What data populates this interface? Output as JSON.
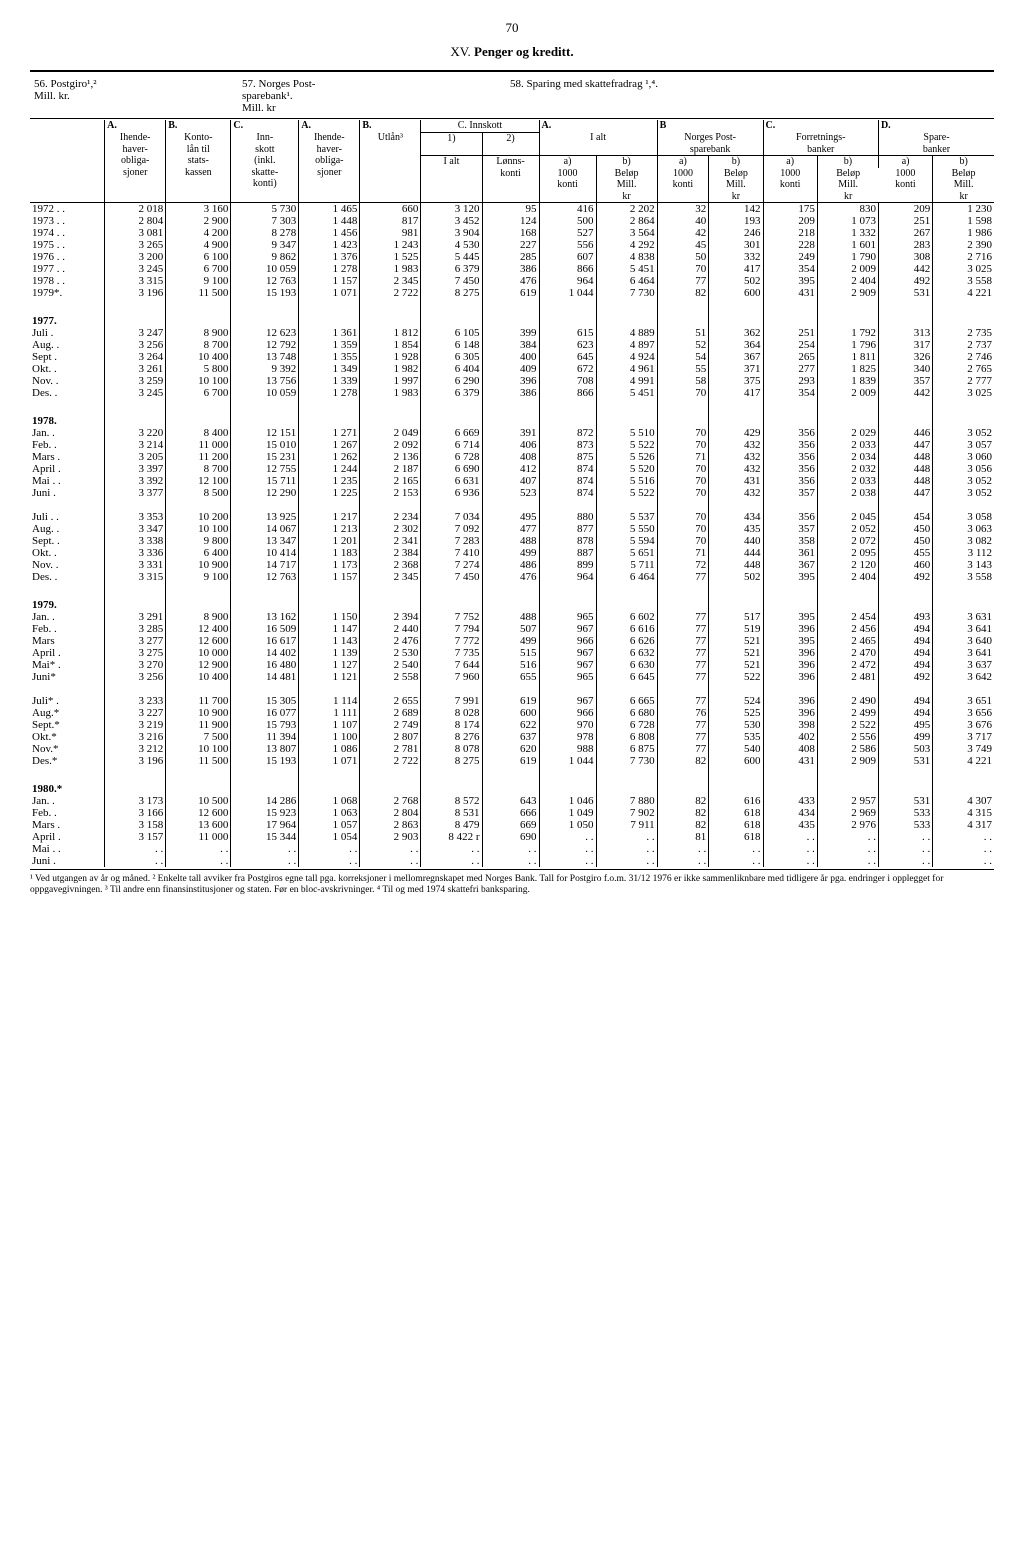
{
  "page_number": "70",
  "section_title_prefix": "XV.",
  "section_title": "Penger og kreditt.",
  "table_titles": {
    "t56": "56. Postgiro¹,²\nMill. kr.",
    "t57": "57. Norges Post-\nsparebank¹.\nMill. kr",
    "t58": "58. Sparing med skattefradrag ¹,⁴."
  },
  "headers": {
    "A1": "A.",
    "B1": "B.",
    "C1": "C.",
    "ihende1": "Ihende-\nhaver-\nobliga-\nsjoner",
    "konto": "Konto-\nlån til\nstats-\nkassen",
    "innskott": "Inn-\nskott\n(inkl.\nskatte-\nkonti)",
    "A2": "A.",
    "B2": "B.",
    "ihende2": "Ihende-\nhaver-\nobliga-\nsjoner",
    "utlan": "Utlån³",
    "cinnskott": "C. Innskott",
    "c1": "1)",
    "c2": "2)",
    "ialt": "I alt",
    "lonnskonti": "Lønns-\nkonti",
    "A3": "A.",
    "B3": "B",
    "C3": "C.",
    "D3": "D.",
    "ialt3": "I alt",
    "norgespost": "Norges Post-\nsparebank",
    "forretnings": "Forretnings-\nbanker",
    "sparebanker": "Spare-\nbanker",
    "a": "a)",
    "b": "b)",
    "konti1000": "1000\nkonti",
    "belop_mill": "Beløp\nMill.\nkr"
  },
  "rows": [
    {
      "label": "1972 . .",
      "v": [
        "2 018",
        "3 160",
        "5 730",
        "1 465",
        "660",
        "3 120",
        "95",
        "416",
        "2 202",
        "32",
        "142",
        "175",
        "830",
        "209",
        "1 230"
      ]
    },
    {
      "label": "1973 . .",
      "v": [
        "2 804",
        "2 900",
        "7 303",
        "1 448",
        "817",
        "3 452",
        "124",
        "500",
        "2 864",
        "40",
        "193",
        "209",
        "1 073",
        "251",
        "1 598"
      ]
    },
    {
      "label": "1974 . .",
      "v": [
        "3 081",
        "4 200",
        "8 278",
        "1 456",
        "981",
        "3 904",
        "168",
        "527",
        "3 564",
        "42",
        "246",
        "218",
        "1 332",
        "267",
        "1 986"
      ]
    },
    {
      "label": "1975 . .",
      "v": [
        "3 265",
        "4 900",
        "9 347",
        "1 423",
        "1 243",
        "4 530",
        "227",
        "556",
        "4 292",
        "45",
        "301",
        "228",
        "1 601",
        "283",
        "2 390"
      ]
    },
    {
      "label": "1976 . .",
      "v": [
        "3 200",
        "6 100",
        "9 862",
        "1 376",
        "1 525",
        "5 445",
        "285",
        "607",
        "4 838",
        "50",
        "332",
        "249",
        "1 790",
        "308",
        "2 716"
      ]
    },
    {
      "label": "1977 . .",
      "v": [
        "3 245",
        "6 700",
        "10 059",
        "1 278",
        "1 983",
        "6 379",
        "386",
        "866",
        "5 451",
        "70",
        "417",
        "354",
        "2 009",
        "442",
        "3 025"
      ]
    },
    {
      "label": "1978 . .",
      "v": [
        "3 315",
        "9 100",
        "12 763",
        "1 157",
        "2 345",
        "7 450",
        "476",
        "964",
        "6 464",
        "77",
        "502",
        "395",
        "2 404",
        "492",
        "3 558"
      ]
    },
    {
      "label": "1979*.",
      "v": [
        "3 196",
        "11 500",
        "15 193",
        "1 071",
        "2 722",
        "8 275",
        "619",
        "1 044",
        "7 730",
        "82",
        "600",
        "431",
        "2 909",
        "531",
        "4 221"
      ]
    }
  ],
  "groups": [
    {
      "title": "1977.",
      "rows": [
        {
          "label": "Juli   .",
          "v": [
            "3 247",
            "8 900",
            "12 623",
            "1 361",
            "1 812",
            "6 105",
            "399",
            "615",
            "4 889",
            "51",
            "362",
            "251",
            "1 792",
            "313",
            "2 735"
          ]
        },
        {
          "label": "Aug.  .",
          "v": [
            "3 256",
            "8 700",
            "12 792",
            "1 359",
            "1 854",
            "6 148",
            "384",
            "623",
            "4 897",
            "52",
            "364",
            "254",
            "1 796",
            "317",
            "2 737"
          ]
        },
        {
          "label": "Sept  .",
          "v": [
            "3 264",
            "10 400",
            "13 748",
            "1 355",
            "1 928",
            "6 305",
            "400",
            "645",
            "4 924",
            "54",
            "367",
            "265",
            "1 811",
            "326",
            "2 746"
          ]
        },
        {
          "label": "Okt.  .",
          "v": [
            "3 261",
            "5 800",
            "9 392",
            "1 349",
            "1 982",
            "6 404",
            "409",
            "672",
            "4 961",
            "55",
            "371",
            "277",
            "1 825",
            "340",
            "2 765"
          ]
        },
        {
          "label": "Nov.  .",
          "v": [
            "3 259",
            "10 100",
            "13 756",
            "1 339",
            "1 997",
            "6 290",
            "396",
            "708",
            "4 991",
            "58",
            "375",
            "293",
            "1 839",
            "357",
            "2 777"
          ]
        },
        {
          "label": "Des.  .",
          "v": [
            "3 245",
            "6 700",
            "10 059",
            "1 278",
            "1 983",
            "6 379",
            "386",
            "866",
            "5 451",
            "70",
            "417",
            "354",
            "2 009",
            "442",
            "3 025"
          ]
        }
      ]
    },
    {
      "title": "1978.",
      "rows": [
        {
          "label": "Jan.   .",
          "v": [
            "3 220",
            "8 400",
            "12 151",
            "1 271",
            "2 049",
            "6 669",
            "391",
            "872",
            "5 510",
            "70",
            "429",
            "356",
            "2 029",
            "446",
            "3 052"
          ]
        },
        {
          "label": "Feb.   .",
          "v": [
            "3 214",
            "11 000",
            "15 010",
            "1 267",
            "2 092",
            "6 714",
            "406",
            "873",
            "5 522",
            "70",
            "432",
            "356",
            "2 033",
            "447",
            "3 057"
          ]
        },
        {
          "label": "Mars  .",
          "v": [
            "3 205",
            "11 200",
            "15 231",
            "1 262",
            "2 136",
            "6 728",
            "408",
            "875",
            "5 526",
            "71",
            "432",
            "356",
            "2 034",
            "448",
            "3 060"
          ]
        },
        {
          "label": "April .",
          "v": [
            "3 397",
            "8 700",
            "12 755",
            "1 244",
            "2 187",
            "6 690",
            "412",
            "874",
            "5 520",
            "70",
            "432",
            "356",
            "2 032",
            "448",
            "3 056"
          ]
        },
        {
          "label": "Mai  . .",
          "v": [
            "3 392",
            "12 100",
            "15 711",
            "1 235",
            "2 165",
            "6 631",
            "407",
            "874",
            "5 516",
            "70",
            "431",
            "356",
            "2 033",
            "448",
            "3 052"
          ]
        },
        {
          "label": "Juni   .",
          "v": [
            "3 377",
            "8 500",
            "12 290",
            "1 225",
            "2 153",
            "6 936",
            "523",
            "874",
            "5 522",
            "70",
            "432",
            "357",
            "2 038",
            "447",
            "3 052"
          ]
        }
      ]
    },
    {
      "title": "",
      "rows": [
        {
          "label": "Juli  . .",
          "v": [
            "3 353",
            "10 200",
            "13 925",
            "1 217",
            "2 234",
            "7 034",
            "495",
            "880",
            "5 537",
            "70",
            "434",
            "356",
            "2 045",
            "454",
            "3 058"
          ]
        },
        {
          "label": "Aug.  .",
          "v": [
            "3 347",
            "10 100",
            "14 067",
            "1 213",
            "2 302",
            "7 092",
            "477",
            "877",
            "5 550",
            "70",
            "435",
            "357",
            "2 052",
            "450",
            "3 063"
          ]
        },
        {
          "label": "Sept.  .",
          "v": [
            "3 338",
            "9 800",
            "13 347",
            "1 201",
            "2 341",
            "7 283",
            "488",
            "878",
            "5 594",
            "70",
            "440",
            "358",
            "2 072",
            "450",
            "3 082"
          ]
        },
        {
          "label": "Okt.   .",
          "v": [
            "3 336",
            "6 400",
            "10 414",
            "1 183",
            "2 384",
            "7 410",
            "499",
            "887",
            "5 651",
            "71",
            "444",
            "361",
            "2 095",
            "455",
            "3 112"
          ]
        },
        {
          "label": "Nov.  .",
          "v": [
            "3 331",
            "10 900",
            "14 717",
            "1 173",
            "2 368",
            "7 274",
            "486",
            "899",
            "5 711",
            "72",
            "448",
            "367",
            "2 120",
            "460",
            "3 143"
          ]
        },
        {
          "label": "Des.   .",
          "v": [
            "3 315",
            "9 100",
            "12 763",
            "1 157",
            "2 345",
            "7 450",
            "476",
            "964",
            "6 464",
            "77",
            "502",
            "395",
            "2 404",
            "492",
            "3 558"
          ]
        }
      ]
    },
    {
      "title": "1979.",
      "rows": [
        {
          "label": "Jan.   .",
          "v": [
            "3 291",
            "8 900",
            "13 162",
            "1 150",
            "2 394",
            "7 752",
            "488",
            "965",
            "6 602",
            "77",
            "517",
            "395",
            "2 454",
            "493",
            "3 631"
          ]
        },
        {
          "label": "Feb.   .",
          "v": [
            "3 285",
            "12 400",
            "16 509",
            "1 147",
            "2 440",
            "7 794",
            "507",
            "967",
            "6 616",
            "77",
            "519",
            "396",
            "2 456",
            "494",
            "3 641"
          ]
        },
        {
          "label": "Mars",
          "v": [
            "3 277",
            "12 600",
            "16 617",
            "1 143",
            "2 476",
            "7 772",
            "499",
            "966",
            "6 626",
            "77",
            "521",
            "395",
            "2 465",
            "494",
            "3 640"
          ]
        },
        {
          "label": "April .",
          "v": [
            "3 275",
            "10 000",
            "14 402",
            "1 139",
            "2 530",
            "7 735",
            "515",
            "967",
            "6 632",
            "77",
            "521",
            "396",
            "2 470",
            "494",
            "3 641"
          ]
        },
        {
          "label": "Mai*  .",
          "v": [
            "3 270",
            "12 900",
            "16 480",
            "1 127",
            "2 540",
            "7 644",
            "516",
            "967",
            "6 630",
            "77",
            "521",
            "396",
            "2 472",
            "494",
            "3 637"
          ]
        },
        {
          "label": "Juni*",
          "v": [
            "3 256",
            "10 400",
            "14 481",
            "1 121",
            "2 558",
            "7 960",
            "655",
            "965",
            "6 645",
            "77",
            "522",
            "396",
            "2 481",
            "492",
            "3 642"
          ]
        }
      ]
    },
    {
      "title": "",
      "rows": [
        {
          "label": "Juli*  .",
          "v": [
            "3 233",
            "11 700",
            "15 305",
            "1 114",
            "2 655",
            "7 991",
            "619",
            "967",
            "6 665",
            "77",
            "524",
            "396",
            "2 490",
            "494",
            "3 651"
          ]
        },
        {
          "label": "Aug.*",
          "v": [
            "3 227",
            "10 900",
            "16 077",
            "1 111",
            "2 689",
            "8 028",
            "600",
            "966",
            "6 680",
            "76",
            "525",
            "396",
            "2 499",
            "494",
            "3 656"
          ]
        },
        {
          "label": "Sept.*",
          "v": [
            "3 219",
            "11 900",
            "15 793",
            "1 107",
            "2 749",
            "8 174",
            "622",
            "970",
            "6 728",
            "77",
            "530",
            "398",
            "2 522",
            "495",
            "3 676"
          ]
        },
        {
          "label": "Okt.*",
          "v": [
            "3 216",
            "7 500",
            "11 394",
            "1 100",
            "2 807",
            "8 276",
            "637",
            "978",
            "6 808",
            "77",
            "535",
            "402",
            "2 556",
            "499",
            "3 717"
          ]
        },
        {
          "label": "Nov.*",
          "v": [
            "3 212",
            "10 100",
            "13 807",
            "1 086",
            "2 781",
            "8 078",
            "620",
            "988",
            "6 875",
            "77",
            "540",
            "408",
            "2 586",
            "503",
            "3 749"
          ]
        },
        {
          "label": "Des.*",
          "v": [
            "3 196",
            "11 500",
            "15 193",
            "1 071",
            "2 722",
            "8 275",
            "619",
            "1 044",
            "7 730",
            "82",
            "600",
            "431",
            "2 909",
            "531",
            "4 221"
          ]
        }
      ]
    },
    {
      "title": "1980.*",
      "rows": [
        {
          "label": "Jan.   .",
          "v": [
            "3 173",
            "10 500",
            "14 286",
            "1 068",
            "2 768",
            "8 572",
            "643",
            "1 046",
            "7 880",
            "82",
            "616",
            "433",
            "2 957",
            "531",
            "4 307"
          ]
        },
        {
          "label": "Feb.   .",
          "v": [
            "3 166",
            "12 600",
            "15 923",
            "1 063",
            "2 804",
            "8 531",
            "666",
            "1 049",
            "7 902",
            "82",
            "618",
            "434",
            "2 969",
            "533",
            "4 315"
          ]
        },
        {
          "label": "Mars  .",
          "v": [
            "3 158",
            "13 600",
            "17 964",
            "1 057",
            "2 863",
            "8 479",
            "669",
            "1 050",
            "7 911",
            "82",
            "618",
            "435",
            "2 976",
            "533",
            "4 317"
          ]
        },
        {
          "label": "April .",
          "v": [
            "3 157",
            "11 000",
            "15 344",
            "1 054",
            "2 903",
            "8 422 r",
            "690",
            ". .",
            ". .",
            "81",
            "618",
            ". .",
            ". .",
            ". .",
            ". ."
          ]
        },
        {
          "label": "Mai  . .",
          "v": [
            ". .",
            ". .",
            ". .",
            ". .",
            ". .",
            ". .",
            ". .",
            ". .",
            ". .",
            ". .",
            ". .",
            ". .",
            ". .",
            ". .",
            ". ."
          ]
        },
        {
          "label": "Juni  .",
          "v": [
            ". .",
            ". .",
            ". .",
            ". .",
            ". .",
            ". .",
            ". .",
            ". .",
            ". .",
            ". .",
            ". .",
            ". .",
            ". .",
            ". .",
            ". ."
          ]
        }
      ]
    }
  ],
  "footnotes": "¹ Ved utgangen av år og måned. ² Enkelte tall avviker fra Postgiros egne tall pga. korreksjoner i mellomregnskapet med Norges Bank. Tall for Postgiro f.o.m. 31/12 1976 er ikke sammenliknbare med tidligere år pga. endringer i opplegget for oppgavegivningen. ³ Til andre enn finansinstitusjoner og staten. Før en bloc-avskrivninger. ⁴ Til og med 1974 skattefri banksparing."
}
